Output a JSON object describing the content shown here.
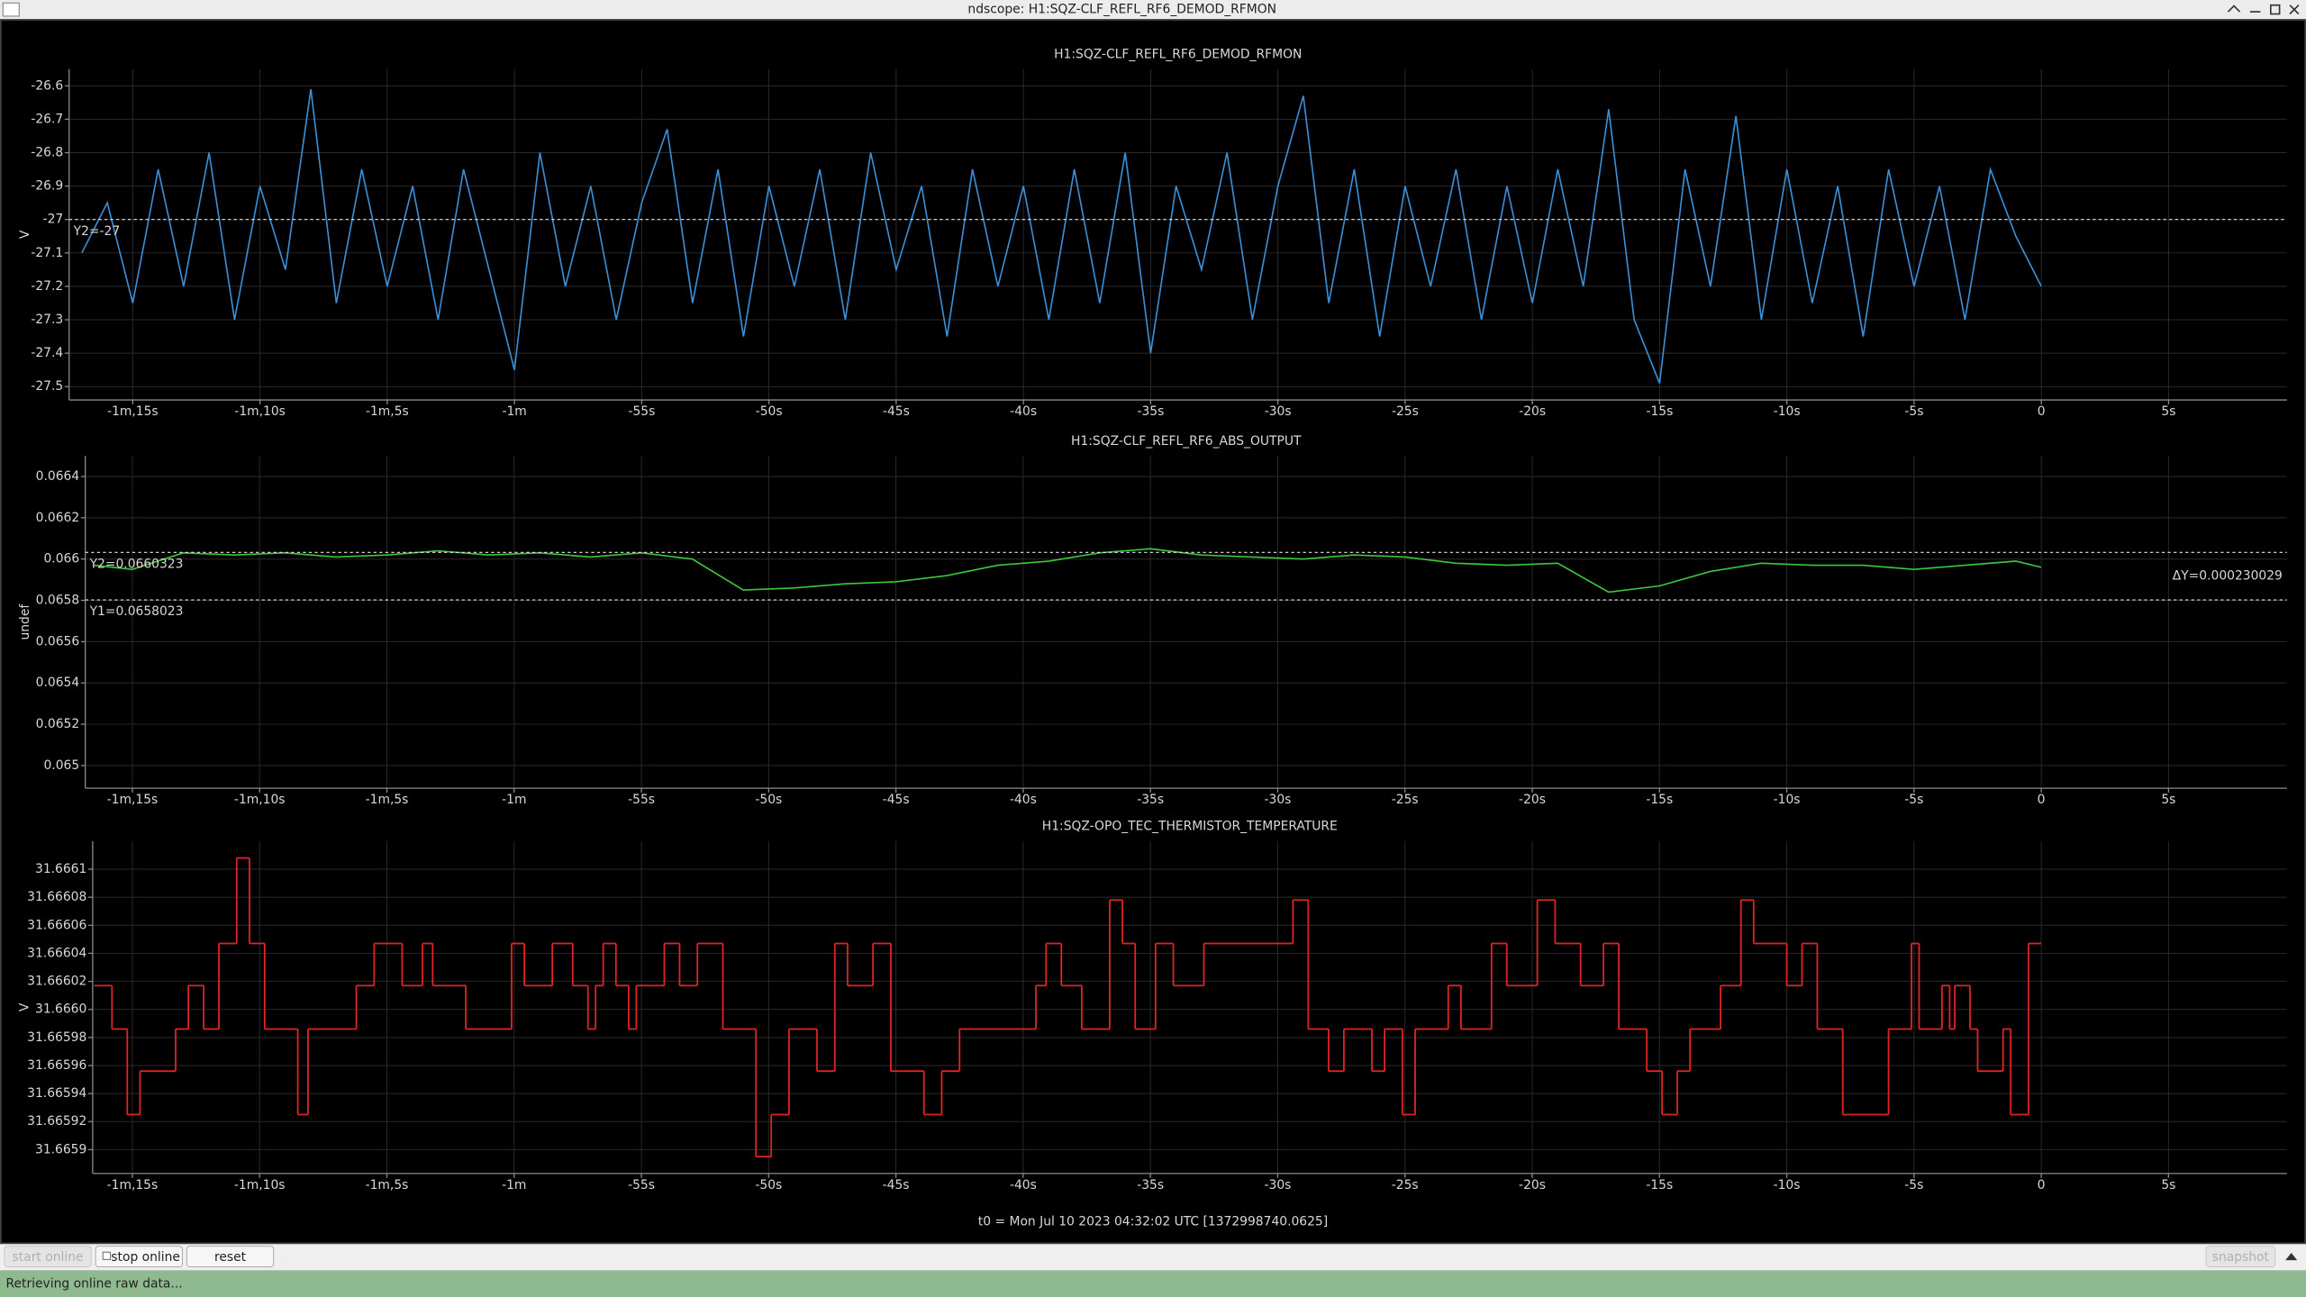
{
  "window": {
    "title": "ndscope: H1:SQZ-CLF_REFL_RF6_DEMOD_RFMON"
  },
  "chart_data": [
    {
      "type": "line",
      "title": "H1:SQZ-CLF_REFL_RF6_DEMOD_RFMON",
      "ylabel": "V",
      "grid": true,
      "xlim": [
        -77.5,
        9.65
      ],
      "ylim": [
        -27.54,
        -26.55
      ],
      "xticks": [
        {
          "value": -75,
          "label": "-1m,15s"
        },
        {
          "value": -70,
          "label": "-1m,10s"
        },
        {
          "value": -65,
          "label": "-1m,5s"
        },
        {
          "value": -60,
          "label": "-1m"
        },
        {
          "value": -55,
          "label": "-55s"
        },
        {
          "value": -50,
          "label": "-50s"
        },
        {
          "value": -45,
          "label": "-45s"
        },
        {
          "value": -40,
          "label": "-40s"
        },
        {
          "value": -35,
          "label": "-35s"
        },
        {
          "value": -30,
          "label": "-30s"
        },
        {
          "value": -25,
          "label": "-25s"
        },
        {
          "value": -20,
          "label": "-20s"
        },
        {
          "value": -15,
          "label": "-15s"
        },
        {
          "value": -10,
          "label": "-10s"
        },
        {
          "value": -5,
          "label": "-5s"
        },
        0,
        {
          "value": 5,
          "label": "5s"
        }
      ],
      "yticks": [
        -26.6,
        -26.7,
        -26.8,
        -26.9,
        -27,
        -27.1,
        -27.2,
        -27.3,
        -27.4,
        -27.5
      ],
      "x": [
        -77,
        -76,
        -75,
        -74,
        -73,
        -72,
        -71,
        -70,
        -69,
        -68,
        -67,
        -66,
        -65,
        -64,
        -63,
        -62,
        -61,
        -60,
        -59,
        -58,
        -57,
        -56,
        -55,
        -54,
        -53,
        -52,
        -51,
        -50,
        -49,
        -48,
        -47,
        -46,
        -45,
        -44,
        -43,
        -42,
        -41,
        -40,
        -39,
        -38,
        -37,
        -36,
        -35,
        -34,
        -33,
        -32,
        -31,
        -30,
        -29,
        -28,
        -27,
        -26,
        -25,
        -24,
        -23,
        -22,
        -21,
        -20,
        -19,
        -18,
        -17,
        -16,
        -15,
        -14,
        -13,
        -12,
        -11,
        -10,
        -9,
        -8,
        -7,
        -6,
        -5,
        -4,
        -3,
        -2,
        -1,
        0
      ],
      "series": [
        {
          "color": "#3a8fd6",
          "values": [
            -27.1,
            -26.95,
            -27.25,
            -26.85,
            -27.2,
            -26.8,
            -27.3,
            -26.9,
            -27.15,
            -26.61,
            -27.25,
            -26.85,
            -27.2,
            -26.9,
            -27.3,
            -26.85,
            -27.15,
            -27.45,
            -26.8,
            -27.2,
            -26.9,
            -27.3,
            -26.95,
            -26.73,
            -27.25,
            -26.85,
            -27.35,
            -26.9,
            -27.2,
            -26.85,
            -27.3,
            -26.8,
            -27.15,
            -26.9,
            -27.35,
            -26.85,
            -27.2,
            -26.9,
            -27.3,
            -26.85,
            -27.25,
            -26.8,
            -27.4,
            -26.9,
            -27.15,
            -26.8,
            -27.3,
            -26.9,
            -26.63,
            -27.25,
            -26.85,
            -27.35,
            -26.9,
            -27.2,
            -26.85,
            -27.3,
            -26.9,
            -27.25,
            -26.85,
            -27.2,
            -26.67,
            -27.3,
            -27.49,
            -26.85,
            -27.2,
            -26.69,
            -27.3,
            -26.85,
            -27.25,
            -26.9,
            -27.35,
            -26.85,
            -27.2,
            -26.9,
            -27.3,
            -26.85,
            -27.05,
            -27.2
          ]
        }
      ],
      "cursors": [
        {
          "value": -27,
          "label": "Y2=-27"
        }
      ]
    },
    {
      "type": "line",
      "title": "H1:SQZ-CLF_REFL_RF6_ABS_OUTPUT",
      "ylabel": "undef",
      "grid": true,
      "xlim": [
        -76.85,
        9.65
      ],
      "ylim": [
        0.06489,
        0.0665
      ],
      "xticks": [
        {
          "value": -75,
          "label": "-1m,15s"
        },
        {
          "value": -70,
          "label": "-1m,10s"
        },
        {
          "value": -65,
          "label": "-1m,5s"
        },
        {
          "value": -60,
          "label": "-1m"
        },
        {
          "value": -55,
          "label": "-55s"
        },
        {
          "value": -50,
          "label": "-50s"
        },
        {
          "value": -45,
          "label": "-45s"
        },
        {
          "value": -40,
          "label": "-40s"
        },
        {
          "value": -35,
          "label": "-35s"
        },
        {
          "value": -30,
          "label": "-30s"
        },
        {
          "value": -25,
          "label": "-25s"
        },
        {
          "value": -20,
          "label": "-20s"
        },
        {
          "value": -15,
          "label": "-15s"
        },
        {
          "value": -10,
          "label": "-10s"
        },
        {
          "value": -5,
          "label": "-5s"
        },
        0,
        {
          "value": 5,
          "label": "5s"
        }
      ],
      "yticks": [
        0.0664,
        0.0662,
        0.066,
        0.0658,
        0.0656,
        0.0654,
        0.0652,
        0.065
      ],
      "x": [
        -76.5,
        -75,
        -73,
        -71,
        -69,
        -67,
        -65,
        -63,
        -61,
        -59,
        -57,
        -55,
        -53,
        -51,
        -49,
        -47,
        -45,
        -43,
        -41,
        -39,
        -37,
        -35,
        -33,
        -31,
        -29,
        -27,
        -25,
        -23,
        -21,
        -19,
        -17,
        -15,
        -13,
        -11,
        -9,
        -7,
        -5,
        -3,
        -1,
        0
      ],
      "series": [
        {
          "color": "#3cc83c",
          "values": [
            0.06597,
            0.06595,
            0.06603,
            0.06602,
            0.06603,
            0.06601,
            0.06602,
            0.06604,
            0.06602,
            0.06603,
            0.06601,
            0.06603,
            0.066,
            0.06585,
            0.06586,
            0.06588,
            0.06589,
            0.06592,
            0.06597,
            0.06599,
            0.06603,
            0.06605,
            0.06602,
            0.06601,
            0.066,
            0.06602,
            0.06601,
            0.06598,
            0.06597,
            0.06598,
            0.06584,
            0.06587,
            0.06594,
            0.06598,
            0.06597,
            0.06597,
            0.06595,
            0.06597,
            0.06599,
            0.06596
          ]
        }
      ],
      "cursors": [
        {
          "value": 0.0660323,
          "label": "Y2=0.0660323"
        },
        {
          "value": 0.0658023,
          "label": "Y1=0.0658023"
        }
      ],
      "delta_label": "ΔY=0.000230029"
    },
    {
      "type": "line",
      "step": "post",
      "title": "H1:SQZ-OPO_TEC_THERMISTOR_TEMPERATURE",
      "ylabel": "V",
      "grid": true,
      "xlim": [
        -76.56,
        9.65
      ],
      "ylim": [
        31.665883,
        31.66612
      ],
      "xticks": [
        {
          "value": -75,
          "label": "-1m,15s"
        },
        {
          "value": -70,
          "label": "-1m,10s"
        },
        {
          "value": -65,
          "label": "-1m,5s"
        },
        {
          "value": -60,
          "label": "-1m"
        },
        {
          "value": -55,
          "label": "-55s"
        },
        {
          "value": -50,
          "label": "-50s"
        },
        {
          "value": -45,
          "label": "-45s"
        },
        {
          "value": -40,
          "label": "-40s"
        },
        {
          "value": -35,
          "label": "-35s"
        },
        {
          "value": -30,
          "label": "-30s"
        },
        {
          "value": -25,
          "label": "-25s"
        },
        {
          "value": -20,
          "label": "-20s"
        },
        {
          "value": -15,
          "label": "-15s"
        },
        {
          "value": -10,
          "label": "-10s"
        },
        {
          "value": -5,
          "label": "-5s"
        },
        0,
        {
          "value": 5,
          "label": "5s"
        }
      ],
      "yticks": [
        31.6661,
        31.66608,
        31.66606,
        31.66604,
        31.66602,
        {
          "value": 31.666,
          "label": "31.6660"
        },
        31.66598,
        31.66596,
        31.66594,
        31.66592,
        31.6659
      ],
      "x": [
        -76.5,
        -75.8,
        -75.2,
        -74.7,
        -73.3,
        -72.8,
        -72.2,
        -71.6,
        -70.9,
        -70.4,
        -69.8,
        -68.5,
        -68.1,
        -66.2,
        -65.5,
        -64.4,
        -63.6,
        -63.2,
        -61.9,
        -60.1,
        -59.6,
        -58.5,
        -57.7,
        -57.1,
        -56.8,
        -56.5,
        -56,
        -55.5,
        -55.2,
        -54.1,
        -53.5,
        -52.8,
        -51.8,
        -50.5,
        -49.9,
        -49.2,
        -48.1,
        -47.4,
        -46.9,
        -45.9,
        -45.2,
        -43.9,
        -43.2,
        -42.5,
        -39.5,
        -39.1,
        -38.5,
        -37.7,
        -36.6,
        -36.1,
        -35.6,
        -34.8,
        -34.1,
        -32.9,
        -29.4,
        -28.8,
        -28,
        -27.4,
        -26.3,
        -25.8,
        -25.1,
        -24.6,
        -23.3,
        -22.8,
        -21.6,
        -21,
        -19.8,
        -19.1,
        -18.1,
        -17.2,
        -16.6,
        -15.5,
        -14.9,
        -14.3,
        -13.8,
        -12.6,
        -11.8,
        -11.3,
        -10,
        -9.4,
        -8.8,
        -7.8,
        -6,
        -5.1,
        -4.8,
        -3.9,
        -3.6,
        -3.4,
        -2.8,
        -2.5,
        -1.5,
        -1.2,
        -0.5,
        0
      ],
      "series": [
        {
          "color": "#e02424",
          "values": [
            31.666017,
            31.665986,
            31.665925,
            31.665956,
            31.665986,
            31.666017,
            31.665986,
            31.666047,
            31.666108,
            31.666047,
            31.665986,
            31.665925,
            31.665986,
            31.666017,
            31.666047,
            31.666017,
            31.666047,
            31.666017,
            31.665986,
            31.666047,
            31.666017,
            31.666047,
            31.666017,
            31.665986,
            31.666017,
            31.666047,
            31.666017,
            31.665986,
            31.666017,
            31.666047,
            31.666017,
            31.666047,
            31.665986,
            31.665895,
            31.665925,
            31.665986,
            31.665956,
            31.666047,
            31.666017,
            31.666047,
            31.665956,
            31.665925,
            31.665956,
            31.665986,
            31.666017,
            31.666047,
            31.666017,
            31.665986,
            31.666078,
            31.666047,
            31.665986,
            31.666047,
            31.666017,
            31.666047,
            31.666078,
            31.665986,
            31.665956,
            31.665986,
            31.665956,
            31.665986,
            31.665925,
            31.665986,
            31.666017,
            31.665986,
            31.666047,
            31.666017,
            31.666078,
            31.666047,
            31.666017,
            31.666047,
            31.665986,
            31.665956,
            31.665925,
            31.665956,
            31.665986,
            31.666017,
            31.666078,
            31.666047,
            31.666017,
            31.666047,
            31.665986,
            31.665925,
            31.665986,
            31.666047,
            31.665986,
            31.666017,
            31.665986,
            31.666017,
            31.665986,
            31.665956,
            31.665986,
            31.665925,
            31.666047,
            31.666047
          ]
        }
      ],
      "cursors": []
    }
  ],
  "footer": {
    "t0": "t0 = Mon Jul 10 2023 04:32:02 UTC [1372998740.0625]"
  },
  "controls": {
    "buttons": [
      "start online",
      "stop online",
      "reset",
      "snapshot"
    ]
  },
  "status": "Retrieving online raw data..."
}
